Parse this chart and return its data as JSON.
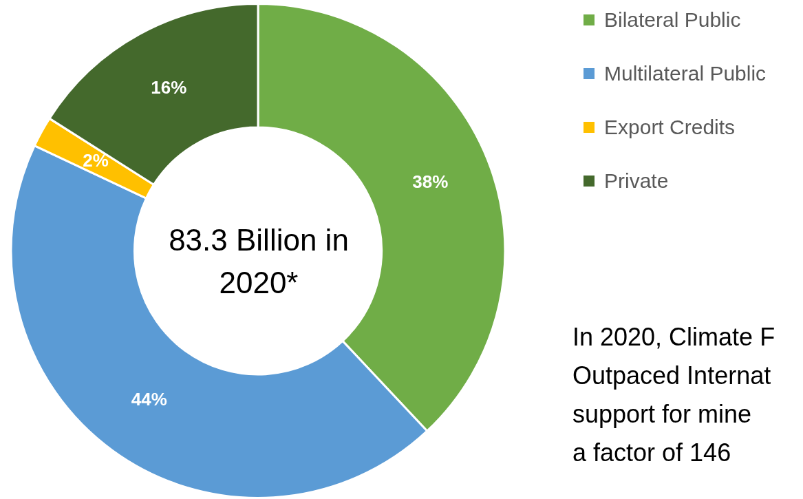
{
  "chart_data": {
    "type": "donut",
    "title": "83.3 Billion in 2020*",
    "categories": [
      "Bilateral Public",
      "Multilateral Public",
      "Export Credits",
      "Private"
    ],
    "values": [
      38,
      44,
      2,
      16
    ],
    "colors": [
      "#70ad47",
      "#5b9bd5",
      "#ffc000",
      "#44692c"
    ],
    "value_labels": [
      "38%",
      "44%",
      "2%",
      "16%"
    ],
    "legend": "top right",
    "annotations": [
      "In 2020, Climate F",
      "Outpaced Internat",
      "support for mine",
      "a factor of 146"
    ]
  }
}
